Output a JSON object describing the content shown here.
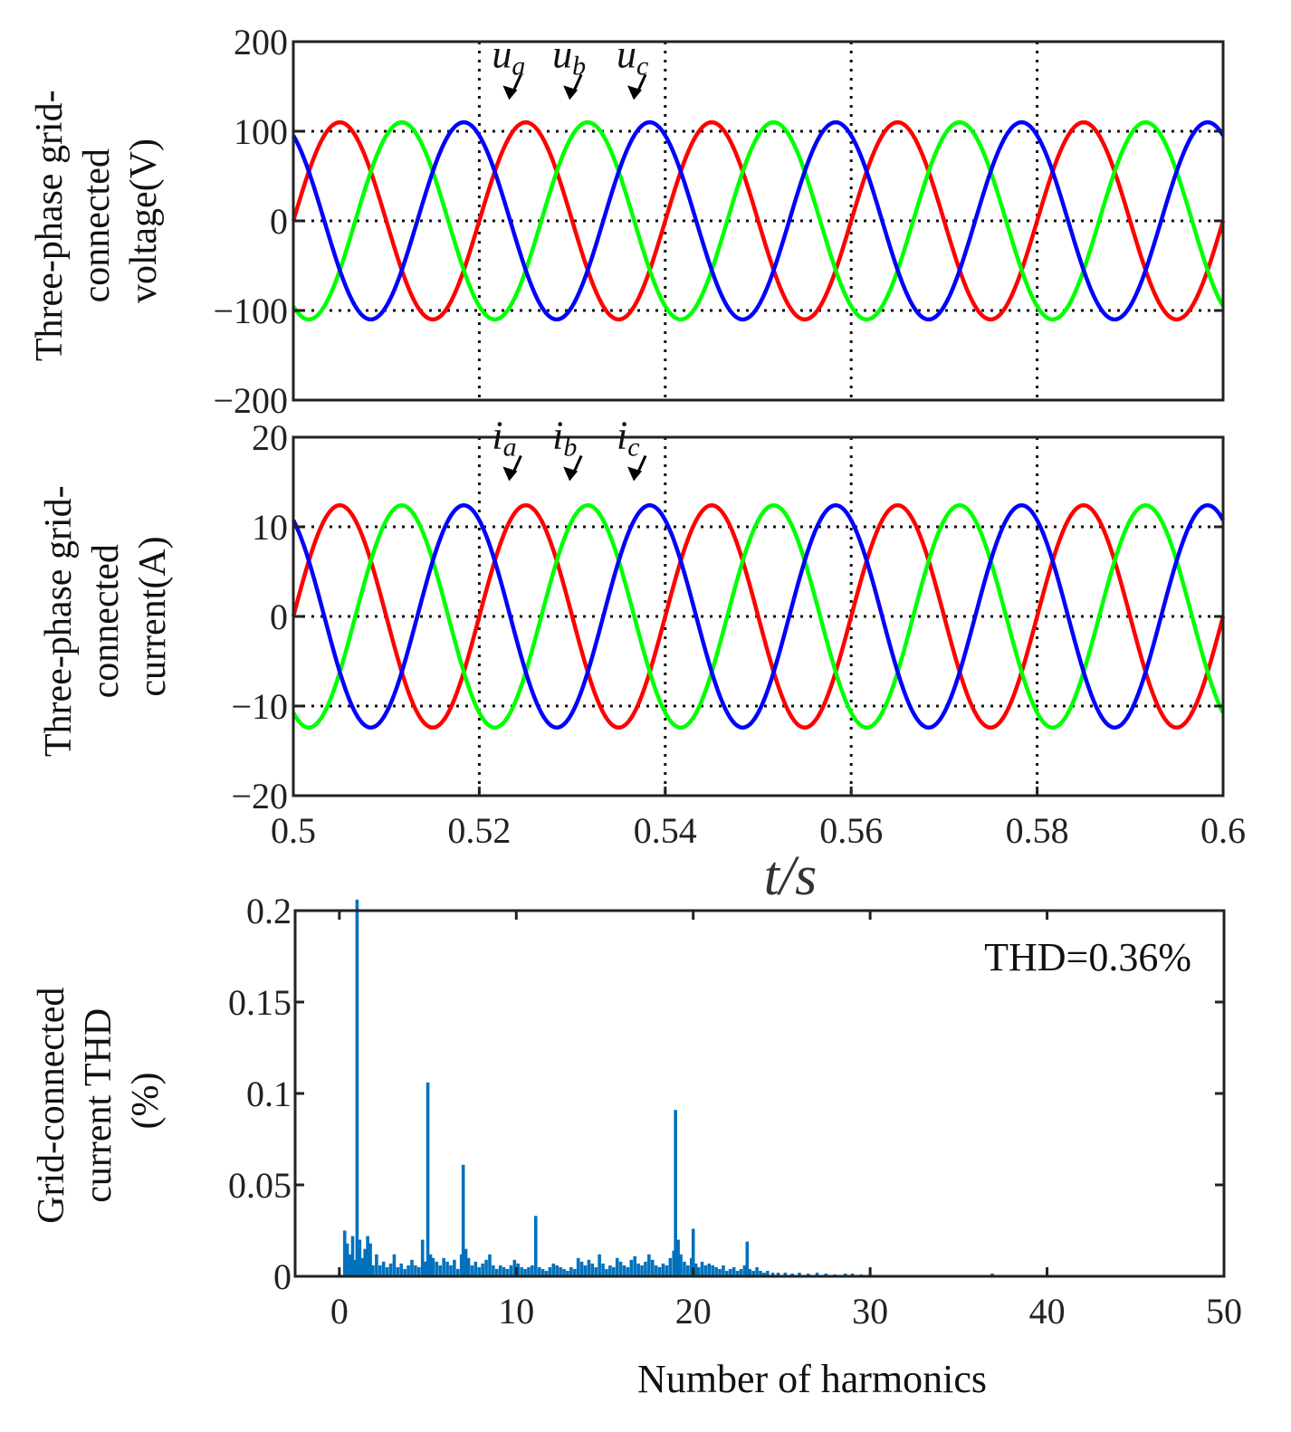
{
  "chart_data": [
    {
      "id": "voltage",
      "type": "line",
      "ylabel_lines": [
        "Three-phase grid-",
        "connected",
        "voltage(V)"
      ],
      "xlim": [
        0.5,
        0.6
      ],
      "ylim": [
        -200,
        200
      ],
      "yticks": [
        -200,
        -100,
        0,
        100,
        200
      ],
      "ytick_labels": [
        "−200",
        "−100",
        "0",
        "100",
        "200"
      ],
      "x_gridlines": [
        0.52,
        0.54,
        0.56,
        0.58
      ],
      "y_gridlines": [
        -100,
        0,
        100
      ],
      "amplitude": 110,
      "frequency_hz": 50,
      "series": [
        {
          "phase_deg": 0,
          "color": "#ff0000"
        },
        {
          "phase_deg": -120,
          "color": "#00ff00"
        },
        {
          "phase_deg": 120,
          "color": "#0000ff"
        }
      ],
      "annotations": [
        {
          "base": "u",
          "sub": "a",
          "x": 0.5237,
          "y": 137
        },
        {
          "base": "u",
          "sub": "b",
          "x": 0.5302,
          "y": 137
        },
        {
          "base": "u",
          "sub": "c",
          "x": 0.5371,
          "y": 137
        }
      ]
    },
    {
      "id": "current",
      "type": "line",
      "ylabel_lines": [
        "Three-phase grid-",
        "connected",
        "current(A)"
      ],
      "xlim": [
        0.5,
        0.6
      ],
      "ylim": [
        -20,
        20
      ],
      "yticks": [
        -20,
        -10,
        0,
        10,
        20
      ],
      "ytick_labels": [
        "−20",
        "−10",
        "0",
        "10",
        "20"
      ],
      "xticks": [
        0.5,
        0.52,
        0.54,
        0.56,
        0.58,
        0.6
      ],
      "xtick_labels": [
        "0.5",
        "0.52",
        "0.54",
        "0.56",
        "0.58",
        "0.6"
      ],
      "x_gridlines": [
        0.52,
        0.54,
        0.56,
        0.58
      ],
      "y_gridlines": [
        -10,
        0,
        10
      ],
      "amplitude": 12.4,
      "frequency_hz": 50,
      "series": [
        {
          "phase_deg": 0,
          "color": "#ff0000"
        },
        {
          "phase_deg": -120,
          "color": "#00ff00"
        },
        {
          "phase_deg": 120,
          "color": "#0000ff"
        }
      ],
      "annotations": [
        {
          "base": "i",
          "sub": "a",
          "x": 0.5237,
          "y": 15.3
        },
        {
          "base": "i",
          "sub": "b",
          "x": 0.5302,
          "y": 15.3
        },
        {
          "base": "i",
          "sub": "c",
          "x": 0.5371,
          "y": 15.3
        }
      ],
      "shared_xlabel_base": "t",
      "shared_xlabel_unit": "s"
    },
    {
      "id": "thd",
      "type": "bar",
      "ylabel_lines": [
        "Grid-connected",
        "current THD",
        "(%)"
      ],
      "xlabel": "Number of harmonics",
      "xlim": [
        -2.5,
        50
      ],
      "ylim": [
        0,
        0.2
      ],
      "xticks": [
        0,
        10,
        20,
        30,
        40,
        50
      ],
      "xtick_labels": [
        "0",
        "10",
        "20",
        "30",
        "40",
        "50"
      ],
      "yticks": [
        0,
        0.05,
        0.1,
        0.15,
        0.2
      ],
      "ytick_labels": [
        "0",
        "0.05",
        "0.1",
        "0.15",
        "0.2"
      ],
      "bar_color": "#0072bd",
      "thd_label": "THD=0.36%",
      "bars": [
        [
          0.3,
          0.025
        ],
        [
          0.45,
          0.018
        ],
        [
          0.6,
          0.012
        ],
        [
          0.75,
          0.022
        ],
        [
          0.9,
          0.009
        ],
        [
          1.0,
          0.206
        ],
        [
          1.15,
          0.02
        ],
        [
          1.3,
          0.01
        ],
        [
          1.45,
          0.015
        ],
        [
          1.6,
          0.022
        ],
        [
          1.75,
          0.018
        ],
        [
          1.9,
          0.006
        ],
        [
          2.1,
          0.012
        ],
        [
          2.3,
          0.006
        ],
        [
          2.5,
          0.008
        ],
        [
          2.7,
          0.005
        ],
        [
          2.9,
          0.007
        ],
        [
          3.1,
          0.012
        ],
        [
          3.3,
          0.005
        ],
        [
          3.5,
          0.007
        ],
        [
          3.7,
          0.004
        ],
        [
          3.9,
          0.006
        ],
        [
          4.1,
          0.009
        ],
        [
          4.3,
          0.006
        ],
        [
          4.5,
          0.005
        ],
        [
          4.7,
          0.02
        ],
        [
          4.85,
          0.008
        ],
        [
          5.0,
          0.106
        ],
        [
          5.15,
          0.012
        ],
        [
          5.3,
          0.01
        ],
        [
          5.5,
          0.008
        ],
        [
          5.7,
          0.006
        ],
        [
          5.9,
          0.01
        ],
        [
          6.1,
          0.008
        ],
        [
          6.3,
          0.006
        ],
        [
          6.5,
          0.009
        ],
        [
          6.7,
          0.004
        ],
        [
          6.9,
          0.012
        ],
        [
          7.0,
          0.061
        ],
        [
          7.15,
          0.015
        ],
        [
          7.3,
          0.01
        ],
        [
          7.5,
          0.006
        ],
        [
          7.7,
          0.008
        ],
        [
          7.9,
          0.005
        ],
        [
          8.1,
          0.007
        ],
        [
          8.3,
          0.009
        ],
        [
          8.5,
          0.012
        ],
        [
          8.7,
          0.006
        ],
        [
          8.9,
          0.004
        ],
        [
          9.1,
          0.006
        ],
        [
          9.3,
          0.005
        ],
        [
          9.5,
          0.004
        ],
        [
          9.7,
          0.006
        ],
        [
          9.9,
          0.009
        ],
        [
          10.1,
          0.007
        ],
        [
          10.3,
          0.005
        ],
        [
          10.5,
          0.004
        ],
        [
          10.7,
          0.005
        ],
        [
          10.9,
          0.006
        ],
        [
          11.1,
          0.033
        ],
        [
          11.3,
          0.005
        ],
        [
          11.5,
          0.004
        ],
        [
          11.7,
          0.003
        ],
        [
          11.9,
          0.005
        ],
        [
          12.1,
          0.007
        ],
        [
          12.3,
          0.006
        ],
        [
          12.5,
          0.005
        ],
        [
          12.7,
          0.004
        ],
        [
          12.9,
          0.003
        ],
        [
          13.1,
          0.005
        ],
        [
          13.3,
          0.004
        ],
        [
          13.5,
          0.01
        ],
        [
          13.7,
          0.008
        ],
        [
          13.9,
          0.006
        ],
        [
          14.1,
          0.009
        ],
        [
          14.3,
          0.007
        ],
        [
          14.5,
          0.005
        ],
        [
          14.7,
          0.012
        ],
        [
          14.9,
          0.007
        ],
        [
          15.1,
          0.004
        ],
        [
          15.3,
          0.006
        ],
        [
          15.5,
          0.005
        ],
        [
          15.7,
          0.01
        ],
        [
          15.9,
          0.008
        ],
        [
          16.1,
          0.006
        ],
        [
          16.3,
          0.005
        ],
        [
          16.5,
          0.009
        ],
        [
          16.7,
          0.011
        ],
        [
          16.9,
          0.007
        ],
        [
          17.1,
          0.006
        ],
        [
          17.3,
          0.008
        ],
        [
          17.5,
          0.012
        ],
        [
          17.7,
          0.009
        ],
        [
          17.9,
          0.006
        ],
        [
          18.1,
          0.005
        ],
        [
          18.3,
          0.007
        ],
        [
          18.5,
          0.006
        ],
        [
          18.7,
          0.01
        ],
        [
          18.9,
          0.014
        ],
        [
          19.0,
          0.091
        ],
        [
          19.15,
          0.02
        ],
        [
          19.3,
          0.012
        ],
        [
          19.5,
          0.008
        ],
        [
          19.7,
          0.006
        ],
        [
          19.9,
          0.01
        ],
        [
          20.0,
          0.026
        ],
        [
          20.15,
          0.007
        ],
        [
          20.3,
          0.005
        ],
        [
          20.5,
          0.008
        ],
        [
          20.7,
          0.006
        ],
        [
          20.9,
          0.007
        ],
        [
          21.1,
          0.006
        ],
        [
          21.3,
          0.005
        ],
        [
          21.5,
          0.004
        ],
        [
          21.7,
          0.006
        ],
        [
          21.9,
          0.003
        ],
        [
          22.1,
          0.004
        ],
        [
          22.3,
          0.005
        ],
        [
          22.5,
          0.003
        ],
        [
          22.7,
          0.004
        ],
        [
          22.9,
          0.006
        ],
        [
          23.05,
          0.019
        ],
        [
          23.2,
          0.004
        ],
        [
          23.4,
          0.003
        ],
        [
          23.6,
          0.005
        ],
        [
          23.8,
          0.003
        ],
        [
          24.0,
          0.002
        ],
        [
          24.2,
          0.003
        ],
        [
          24.5,
          0.002
        ],
        [
          24.8,
          0.002
        ],
        [
          25.2,
          0.002
        ],
        [
          25.6,
          0.0015
        ],
        [
          26.0,
          0.002
        ],
        [
          26.5,
          0.0015
        ],
        [
          27.0,
          0.002
        ],
        [
          27.5,
          0.0015
        ],
        [
          28.0,
          0.001
        ],
        [
          28.6,
          0.0015
        ],
        [
          29.0,
          0.0015
        ],
        [
          29.5,
          0.001
        ],
        [
          36.9,
          0.0015
        ]
      ]
    }
  ]
}
